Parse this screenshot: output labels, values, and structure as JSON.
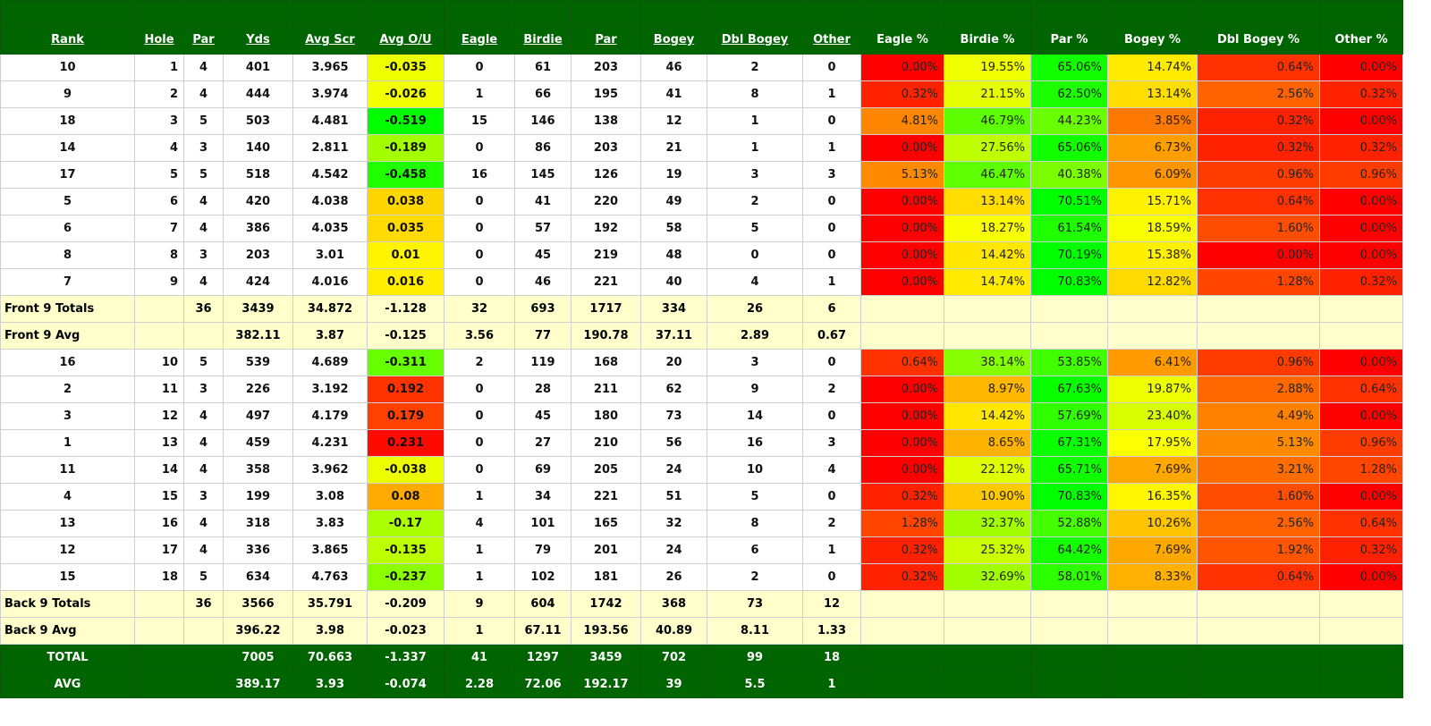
{
  "colors": {
    "header_bg": "#006400",
    "summary_bg": "#ffffcc",
    "low": "#ff0000",
    "mid": "#ffff00",
    "high": "#00ff00"
  },
  "headers": [
    "Rank",
    "Hole",
    "Par",
    "Yds",
    "Avg Scr",
    "Avg O/U",
    "Eagle",
    "Birdie",
    "Par",
    "Bogey",
    "Dbl Bogey",
    "Other",
    "Eagle %",
    "Birdie %",
    "Par %",
    "Bogey %",
    "Dbl Bogey %",
    "Other %"
  ],
  "holes": [
    {
      "cells": [
        "10",
        "1",
        "4",
        "401",
        "3.965",
        "-0.035",
        "0",
        "61",
        "203",
        "46",
        "2",
        "0"
      ],
      "pct": [
        "0.00%",
        "19.55%",
        "65.06%",
        "14.74%",
        "0.64%",
        "0.00%"
      ]
    },
    {
      "cells": [
        "9",
        "2",
        "4",
        "444",
        "3.974",
        "-0.026",
        "1",
        "66",
        "195",
        "41",
        "8",
        "1"
      ],
      "pct": [
        "0.32%",
        "21.15%",
        "62.50%",
        "13.14%",
        "2.56%",
        "0.32%"
      ]
    },
    {
      "cells": [
        "18",
        "3",
        "5",
        "503",
        "4.481",
        "-0.519",
        "15",
        "146",
        "138",
        "12",
        "1",
        "0"
      ],
      "pct": [
        "4.81%",
        "46.79%",
        "44.23%",
        "3.85%",
        "0.32%",
        "0.00%"
      ]
    },
    {
      "cells": [
        "14",
        "4",
        "3",
        "140",
        "2.811",
        "-0.189",
        "0",
        "86",
        "203",
        "21",
        "1",
        "1"
      ],
      "pct": [
        "0.00%",
        "27.56%",
        "65.06%",
        "6.73%",
        "0.32%",
        "0.32%"
      ]
    },
    {
      "cells": [
        "17",
        "5",
        "5",
        "518",
        "4.542",
        "-0.458",
        "16",
        "145",
        "126",
        "19",
        "3",
        "3"
      ],
      "pct": [
        "5.13%",
        "46.47%",
        "40.38%",
        "6.09%",
        "0.96%",
        "0.96%"
      ]
    },
    {
      "cells": [
        "5",
        "6",
        "4",
        "420",
        "4.038",
        "0.038",
        "0",
        "41",
        "220",
        "49",
        "2",
        "0"
      ],
      "pct": [
        "0.00%",
        "13.14%",
        "70.51%",
        "15.71%",
        "0.64%",
        "0.00%"
      ]
    },
    {
      "cells": [
        "6",
        "7",
        "4",
        "386",
        "4.035",
        "0.035",
        "0",
        "57",
        "192",
        "58",
        "5",
        "0"
      ],
      "pct": [
        "0.00%",
        "18.27%",
        "61.54%",
        "18.59%",
        "1.60%",
        "0.00%"
      ]
    },
    {
      "cells": [
        "8",
        "8",
        "3",
        "203",
        "3.01",
        "0.01",
        "0",
        "45",
        "219",
        "48",
        "0",
        "0"
      ],
      "pct": [
        "0.00%",
        "14.42%",
        "70.19%",
        "15.38%",
        "0.00%",
        "0.00%"
      ]
    },
    {
      "cells": [
        "7",
        "9",
        "4",
        "424",
        "4.016",
        "0.016",
        "0",
        "46",
        "221",
        "40",
        "4",
        "1"
      ],
      "pct": [
        "0.00%",
        "14.74%",
        "70.83%",
        "12.82%",
        "1.28%",
        "0.32%"
      ]
    },
    {
      "summary": true,
      "cells": [
        "Front 9 Totals",
        "",
        "36",
        "3439",
        "34.872",
        "-1.128",
        "32",
        "693",
        "1717",
        "334",
        "26",
        "6"
      ]
    },
    {
      "summary": true,
      "cells": [
        "Front 9 Avg",
        "",
        "",
        "382.11",
        "3.87",
        "-0.125",
        "3.56",
        "77",
        "190.78",
        "37.11",
        "2.89",
        "0.67"
      ]
    },
    {
      "cells": [
        "16",
        "10",
        "5",
        "539",
        "4.689",
        "-0.311",
        "2",
        "119",
        "168",
        "20",
        "3",
        "0"
      ],
      "pct": [
        "0.64%",
        "38.14%",
        "53.85%",
        "6.41%",
        "0.96%",
        "0.00%"
      ]
    },
    {
      "cells": [
        "2",
        "11",
        "3",
        "226",
        "3.192",
        "0.192",
        "0",
        "28",
        "211",
        "62",
        "9",
        "2"
      ],
      "pct": [
        "0.00%",
        "8.97%",
        "67.63%",
        "19.87%",
        "2.88%",
        "0.64%"
      ]
    },
    {
      "cells": [
        "3",
        "12",
        "4",
        "497",
        "4.179",
        "0.179",
        "0",
        "45",
        "180",
        "73",
        "14",
        "0"
      ],
      "pct": [
        "0.00%",
        "14.42%",
        "57.69%",
        "23.40%",
        "4.49%",
        "0.00%"
      ]
    },
    {
      "cells": [
        "1",
        "13",
        "4",
        "459",
        "4.231",
        "0.231",
        "0",
        "27",
        "210",
        "56",
        "16",
        "3"
      ],
      "pct": [
        "0.00%",
        "8.65%",
        "67.31%",
        "17.95%",
        "5.13%",
        "0.96%"
      ]
    },
    {
      "cells": [
        "11",
        "14",
        "4",
        "358",
        "3.962",
        "-0.038",
        "0",
        "69",
        "205",
        "24",
        "10",
        "4"
      ],
      "pct": [
        "0.00%",
        "22.12%",
        "65.71%",
        "7.69%",
        "3.21%",
        "1.28%"
      ]
    },
    {
      "cells": [
        "4",
        "15",
        "3",
        "199",
        "3.08",
        "0.08",
        "1",
        "34",
        "221",
        "51",
        "5",
        "0"
      ],
      "pct": [
        "0.32%",
        "10.90%",
        "70.83%",
        "16.35%",
        "1.60%",
        "0.00%"
      ]
    },
    {
      "cells": [
        "13",
        "16",
        "4",
        "318",
        "3.83",
        "-0.17",
        "4",
        "101",
        "165",
        "32",
        "8",
        "2"
      ],
      "pct": [
        "1.28%",
        "32.37%",
        "52.88%",
        "10.26%",
        "2.56%",
        "0.64%"
      ]
    },
    {
      "cells": [
        "12",
        "17",
        "4",
        "336",
        "3.865",
        "-0.135",
        "1",
        "79",
        "201",
        "24",
        "6",
        "1"
      ],
      "pct": [
        "0.32%",
        "25.32%",
        "64.42%",
        "7.69%",
        "1.92%",
        "0.32%"
      ]
    },
    {
      "cells": [
        "15",
        "18",
        "5",
        "634",
        "4.763",
        "-0.237",
        "1",
        "102",
        "181",
        "26",
        "2",
        "0"
      ],
      "pct": [
        "0.32%",
        "32.69%",
        "58.01%",
        "8.33%",
        "0.64%",
        "0.00%"
      ]
    },
    {
      "summary": true,
      "cells": [
        "Back 9 Totals",
        "",
        "36",
        "3566",
        "35.791",
        "-0.209",
        "9",
        "604",
        "1742",
        "368",
        "73",
        "12"
      ]
    },
    {
      "summary": true,
      "cells": [
        "Back 9 Avg",
        "",
        "",
        "396.22",
        "3.98",
        "-0.023",
        "1",
        "67.11",
        "193.56",
        "40.89",
        "8.11",
        "1.33"
      ]
    },
    {
      "grand": true,
      "cells": [
        "TOTAL",
        "",
        "",
        "7005",
        "70.663",
        "-1.337",
        "41",
        "1297",
        "3459",
        "702",
        "99",
        "18"
      ]
    },
    {
      "grand": true,
      "cells": [
        "AVG",
        "",
        "",
        "389.17",
        "3.93",
        "-0.074",
        "2.28",
        "72.06",
        "192.17",
        "39",
        "5.5",
        "1"
      ]
    }
  ]
}
